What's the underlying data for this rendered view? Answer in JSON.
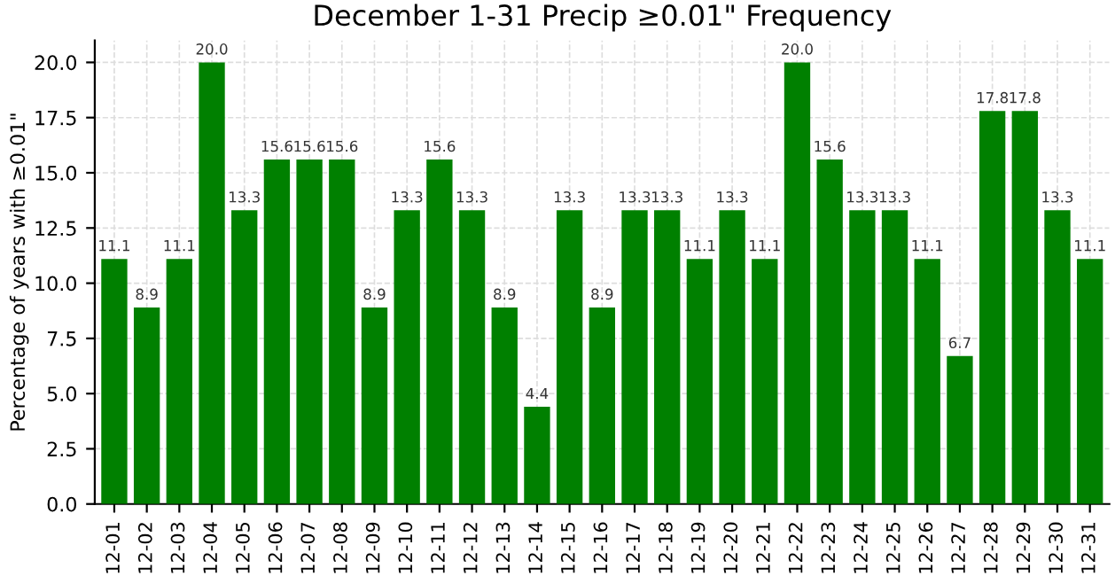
{
  "chart_data": {
    "type": "bar",
    "title": "December 1-31 Precip ≥0.01\" Frequency",
    "ylabel": "Percentage of years with ≥0.01\"",
    "categories": [
      "12-01",
      "12-02",
      "12-03",
      "12-04",
      "12-05",
      "12-06",
      "12-07",
      "12-08",
      "12-09",
      "12-10",
      "12-11",
      "12-12",
      "12-13",
      "12-14",
      "12-15",
      "12-16",
      "12-17",
      "12-18",
      "12-19",
      "12-20",
      "12-21",
      "12-22",
      "12-23",
      "12-24",
      "12-25",
      "12-26",
      "12-27",
      "12-28",
      "12-29",
      "12-30",
      "12-31"
    ],
    "values": [
      11.1,
      8.9,
      11.1,
      20.0,
      13.3,
      15.6,
      15.6,
      15.6,
      8.9,
      13.3,
      15.6,
      13.3,
      8.9,
      4.4,
      13.3,
      8.9,
      13.3,
      13.3,
      11.1,
      13.3,
      11.1,
      20.0,
      15.6,
      13.3,
      13.3,
      11.1,
      6.7,
      17.8,
      17.8,
      13.3,
      11.1
    ],
    "value_labels": [
      "11.1",
      "8.9",
      "11.1",
      "20.0",
      "13.3",
      "15.6",
      "15.6",
      "15.6",
      "8.9",
      "13.3",
      "15.6",
      "13.3",
      "8.9",
      "4.4",
      "13.3",
      "8.9",
      "13.3",
      "13.3",
      "11.1",
      "13.3",
      "11.1",
      "20.0",
      "15.6",
      "13.3",
      "13.3",
      "11.1",
      "6.7",
      "17.8",
      "17.8",
      "13.3",
      "11.1"
    ],
    "color": "#008000",
    "ylim": [
      0,
      21
    ],
    "yticks": [
      {
        "value": 0,
        "label": "0.0"
      },
      {
        "value": 2.5,
        "label": "2.5"
      },
      {
        "value": 5,
        "label": "5.0"
      },
      {
        "value": 7.5,
        "label": "7.5"
      },
      {
        "value": 10,
        "label": "10.0"
      },
      {
        "value": 12.5,
        "label": "12.5"
      },
      {
        "value": 15,
        "label": "15.0"
      },
      {
        "value": 17.5,
        "label": "17.5"
      },
      {
        "value": 20,
        "label": "20.0"
      }
    ],
    "grid": true,
    "legend": false
  }
}
